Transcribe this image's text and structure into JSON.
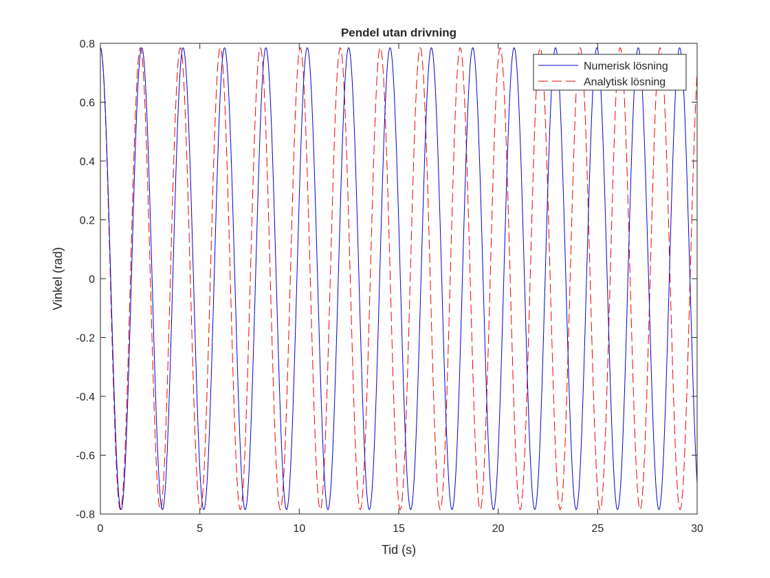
{
  "chart_data": {
    "type": "line",
    "title": "Pendel utan drivning",
    "xlabel": "Tid (s)",
    "ylabel": "Vinkel (rad)",
    "xlim": [
      0,
      30
    ],
    "ylim": [
      -0.8,
      0.8
    ],
    "xticks": [
      0,
      5,
      10,
      15,
      20,
      25,
      30
    ],
    "xtick_labels": [
      "0",
      "5",
      "10",
      "15",
      "20",
      "25",
      "30"
    ],
    "yticks": [
      -0.8,
      -0.6,
      -0.4,
      -0.2,
      0,
      0.2,
      0.4,
      0.6,
      0.8
    ],
    "ytick_labels": [
      "-0.8",
      "-0.6",
      "-0.4",
      "-0.2",
      "0",
      "0.2",
      "0.4",
      "0.6",
      "0.8"
    ],
    "grid": false,
    "legend_position": "top-right",
    "series": [
      {
        "name": "Numerisk lösning",
        "color": "#0000cc",
        "style": "solid",
        "function": "cosine",
        "amplitude": 0.785,
        "period": 2.08,
        "phase": 0
      },
      {
        "name": "Analytisk lösning",
        "color": "#ee0000",
        "style": "dashed",
        "function": "cosine",
        "amplitude": 0.785,
        "period": 2.01,
        "phase": 0
      }
    ]
  }
}
